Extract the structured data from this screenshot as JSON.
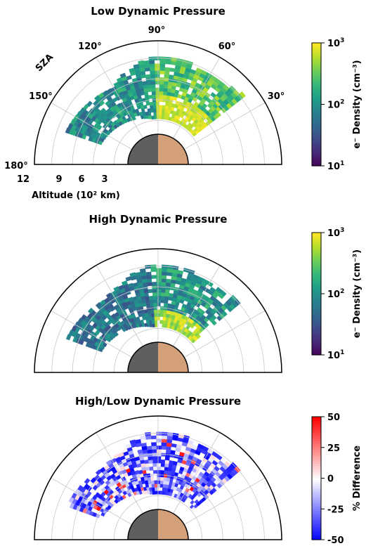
{
  "chart_data": [
    {
      "type": "heatmap",
      "projection": "half-polar",
      "title": "Low Dynamic Pressure",
      "theta_label": "SZA",
      "theta_ticks": [
        "180°",
        "150°",
        "120°",
        "90°",
        "60°",
        "30°"
      ],
      "r_label": "Altitude (10² km)",
      "r_ticks": [
        "12",
        "9",
        "6",
        "3"
      ],
      "colorbar": {
        "label": "e⁻ Density (cm⁻³)",
        "scale": "log",
        "range": [
          10,
          1000
        ],
        "ticks": [
          "10",
          "10",
          "10"
        ],
        "tick_exponents": [
          "1",
          "2",
          "3"
        ],
        "colormap": "viridis"
      },
      "planet_colors": {
        "night": "#5f5f5f",
        "day": "#d4a07a"
      },
      "data_extent": {
        "sza_deg": [
          38,
          160
        ],
        "altitude_1e2km": [
          3.2,
          12.5
        ]
      },
      "values_note": "per-bin densities not legible; daylight-side bins near 60–90° SZA at ~1000 cm⁻³, night-side bins ~100 cm⁻³"
    },
    {
      "type": "heatmap",
      "projection": "half-polar",
      "title": "High Dynamic Pressure",
      "colorbar": {
        "label": "e⁻ Density (cm⁻³)",
        "scale": "log",
        "range": [
          10,
          1000
        ],
        "ticks": [
          "10",
          "10",
          "10"
        ],
        "tick_exponents": [
          "1",
          "2",
          "3"
        ],
        "colormap": "viridis"
      },
      "data_extent": {
        "sza_deg": [
          40,
          160
        ],
        "altitude_1e2km": [
          3.2,
          12.5
        ]
      },
      "values_note": "per-bin densities not legible; overall lower than low-pressure case"
    },
    {
      "type": "heatmap",
      "projection": "half-polar",
      "title": "High/Low Dynamic Pressure",
      "colorbar": {
        "label": "% Difference",
        "scale": "linear",
        "range": [
          -50,
          50
        ],
        "ticks": [
          "50",
          "25",
          "0",
          "-25",
          "-50"
        ],
        "colormap": "bwr"
      },
      "data_extent": {
        "sza_deg": [
          40,
          160
        ],
        "altitude_1e2km": [
          3.2,
          12.5
        ]
      },
      "values_note": "per-bin differences not legible; mostly negative (blue)"
    }
  ]
}
